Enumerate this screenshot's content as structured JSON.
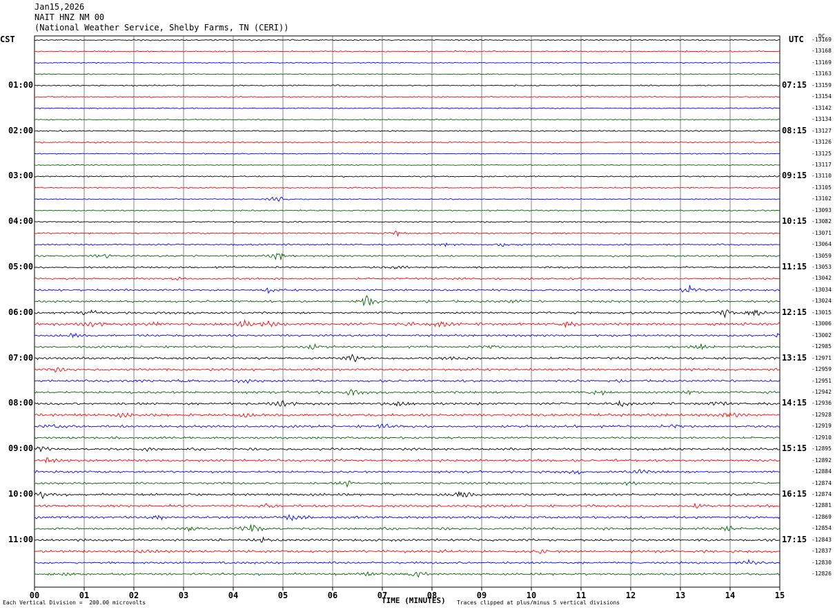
{
  "header": {
    "date": "Jan15,2026",
    "station": "NAIT HNZ NM 00",
    "network": "(National Weather Service, Shelby Farms, TN (CERI))"
  },
  "left_axis": {
    "label": "CST",
    "hours": [
      "01:00",
      "02:00",
      "03:00",
      "04:00",
      "05:00",
      "06:00",
      "07:00",
      "08:00",
      "09:00",
      "10:00",
      "11:00"
    ]
  },
  "right_axis": {
    "label": "UTC",
    "hours": [
      "07:15",
      "08:15",
      "09:15",
      "10:15",
      "11:15",
      "12:15",
      "13:15",
      "14:15",
      "15:15",
      "16:15",
      "17:15"
    ],
    "dc_label": "DC"
  },
  "footer": {
    "scale_note": "Each Vertical Division =  200.00 microvolts",
    "xlabel": "TIME (MINUTES)",
    "clip_note": "Traces clipped at plus/minus 5 vertical divisions"
  },
  "chart_data": {
    "type": "line",
    "title": "NAIT HNZ NM 00",
    "xlabel": "TIME (MINUTES)",
    "ylabel": "",
    "x_ticks": [
      "00",
      "01",
      "02",
      "03",
      "04",
      "05",
      "06",
      "07",
      "08",
      "09",
      "10",
      "11",
      "12",
      "13",
      "14",
      "15"
    ],
    "xlim": [
      0,
      15
    ],
    "grid": true,
    "trace_colors": [
      "#000000",
      "#ff0000",
      "#0000ff",
      "#006400"
    ],
    "dc_offsets": [
      -13169,
      -13168,
      -13169,
      -13163,
      -13159,
      -13154,
      -13142,
      -13134,
      -13127,
      -13126,
      -13125,
      -13117,
      -13110,
      -13105,
      -13102,
      -13093,
      -13082,
      -13071,
      -13064,
      -13059,
      -13053,
      -13042,
      -13034,
      -13024,
      -13015,
      -13006,
      -13002,
      -12985,
      -12971,
      -12959,
      -12951,
      -12942,
      -12936,
      -12928,
      -12919,
      -12910,
      -12895,
      -12892,
      -12884,
      -12874,
      -12874,
      -12881,
      -12869,
      -12854,
      -12843,
      -12837,
      -12830,
      -12826
    ],
    "trace_amplitude": [
      0.6,
      0.6,
      0.5,
      0.5,
      0.6,
      0.6,
      0.5,
      0.5,
      0.6,
      0.6,
      0.5,
      0.5,
      0.6,
      0.6,
      0.5,
      0.6,
      0.6,
      0.7,
      0.7,
      0.8,
      0.8,
      0.9,
      0.9,
      1.0,
      1.0,
      1.2,
      1.0,
      1.0,
      1.1,
      1.1,
      1.1,
      1.1,
      1.1,
      1.2,
      1.1,
      1.0,
      1.1,
      1.1,
      1.0,
      1.0,
      1.1,
      1.1,
      1.1,
      1.1,
      1.1,
      1.1,
      1.0,
      1.0
    ],
    "events": [
      {
        "trace": 14,
        "minute": 4.9,
        "amp": 4
      },
      {
        "trace": 17,
        "minute": 7.3,
        "amp": 3
      },
      {
        "trace": 18,
        "minute": 8.3,
        "amp": 2
      },
      {
        "trace": 18,
        "minute": 9.4,
        "amp": 3
      },
      {
        "trace": 19,
        "minute": 1.4,
        "amp": 3
      },
      {
        "trace": 19,
        "minute": 4.9,
        "amp": 6
      },
      {
        "trace": 20,
        "minute": 7.3,
        "amp": 2
      },
      {
        "trace": 21,
        "minute": 2.9,
        "amp": 2
      },
      {
        "trace": 22,
        "minute": 4.7,
        "amp": 3
      },
      {
        "trace": 22,
        "minute": 13.2,
        "amp": 5
      },
      {
        "trace": 23,
        "minute": 6.7,
        "amp": 8
      },
      {
        "trace": 23,
        "minute": 9.6,
        "amp": 2
      },
      {
        "trace": 24,
        "minute": 1.1,
        "amp": 4
      },
      {
        "trace": 24,
        "minute": 13.9,
        "amp": 4
      },
      {
        "trace": 24,
        "minute": 14.5,
        "amp": 4
      },
      {
        "trace": 25,
        "minute": 1.2,
        "amp": 4
      },
      {
        "trace": 25,
        "minute": 2.4,
        "amp": 3
      },
      {
        "trace": 25,
        "minute": 4.2,
        "amp": 4
      },
      {
        "trace": 25,
        "minute": 4.7,
        "amp": 4
      },
      {
        "trace": 25,
        "minute": 7.5,
        "amp": 3
      },
      {
        "trace": 25,
        "minute": 8.2,
        "amp": 3
      },
      {
        "trace": 25,
        "minute": 10.7,
        "amp": 3
      },
      {
        "trace": 26,
        "minute": 0.8,
        "amp": 2
      },
      {
        "trace": 26,
        "minute": 15.0,
        "amp": 4
      },
      {
        "trace": 27,
        "minute": 5.6,
        "amp": 3
      },
      {
        "trace": 27,
        "minute": 9.2,
        "amp": 3
      },
      {
        "trace": 27,
        "minute": 13.4,
        "amp": 4
      },
      {
        "trace": 28,
        "minute": 6.4,
        "amp": 5
      },
      {
        "trace": 28,
        "minute": 8.5,
        "amp": 3
      },
      {
        "trace": 29,
        "minute": 0.4,
        "amp": 3
      },
      {
        "trace": 30,
        "minute": 3.0,
        "amp": 2
      },
      {
        "trace": 30,
        "minute": 4.2,
        "amp": 2
      },
      {
        "trace": 31,
        "minute": 6.4,
        "amp": 3
      },
      {
        "trace": 31,
        "minute": 11.4,
        "amp": 4
      },
      {
        "trace": 31,
        "minute": 13.2,
        "amp": 3
      },
      {
        "trace": 32,
        "minute": 5.0,
        "amp": 4
      },
      {
        "trace": 32,
        "minute": 7.3,
        "amp": 3
      },
      {
        "trace": 32,
        "minute": 11.8,
        "amp": 3
      },
      {
        "trace": 32,
        "minute": 13.8,
        "amp": 3
      },
      {
        "trace": 33,
        "minute": 1.8,
        "amp": 2
      },
      {
        "trace": 33,
        "minute": 4.2,
        "amp": 2
      },
      {
        "trace": 33,
        "minute": 11.3,
        "amp": 3
      },
      {
        "trace": 33,
        "minute": 14.0,
        "amp": 3
      },
      {
        "trace": 34,
        "minute": 0.4,
        "amp": 3
      },
      {
        "trace": 34,
        "minute": 7.0,
        "amp": 3
      },
      {
        "trace": 34,
        "minute": 12.9,
        "amp": 3
      },
      {
        "trace": 36,
        "minute": 0.1,
        "amp": 3
      },
      {
        "trace": 36,
        "minute": 2.3,
        "amp": 2
      },
      {
        "trace": 37,
        "minute": 0.3,
        "amp": 4
      },
      {
        "trace": 37,
        "minute": 10.2,
        "amp": 2
      },
      {
        "trace": 38,
        "minute": 10.9,
        "amp": 2
      },
      {
        "trace": 38,
        "minute": 12.2,
        "amp": 3
      },
      {
        "trace": 39,
        "minute": 6.3,
        "amp": 3
      },
      {
        "trace": 39,
        "minute": 11.9,
        "amp": 2
      },
      {
        "trace": 40,
        "minute": 0.2,
        "amp": 4
      },
      {
        "trace": 40,
        "minute": 8.6,
        "amp": 5
      },
      {
        "trace": 41,
        "minute": 4.7,
        "amp": 2
      },
      {
        "trace": 41,
        "minute": 13.3,
        "amp": 2
      },
      {
        "trace": 42,
        "minute": 2.5,
        "amp": 3
      },
      {
        "trace": 42,
        "minute": 5.2,
        "amp": 4
      },
      {
        "trace": 43,
        "minute": 4.4,
        "amp": 7
      },
      {
        "trace": 43,
        "minute": 3.1,
        "amp": 3
      },
      {
        "trace": 43,
        "minute": 14.0,
        "amp": 3
      },
      {
        "trace": 44,
        "minute": 4.6,
        "amp": 2
      },
      {
        "trace": 45,
        "minute": 2.2,
        "amp": 2
      },
      {
        "trace": 45,
        "minute": 8.2,
        "amp": 2
      },
      {
        "trace": 45,
        "minute": 10.2,
        "amp": 2
      },
      {
        "trace": 46,
        "minute": 14.4,
        "amp": 3
      },
      {
        "trace": 47,
        "minute": 0.7,
        "amp": 4
      },
      {
        "trace": 47,
        "minute": 7.7,
        "amp": 5
      },
      {
        "trace": 47,
        "minute": 6.7,
        "amp": 3
      }
    ]
  }
}
